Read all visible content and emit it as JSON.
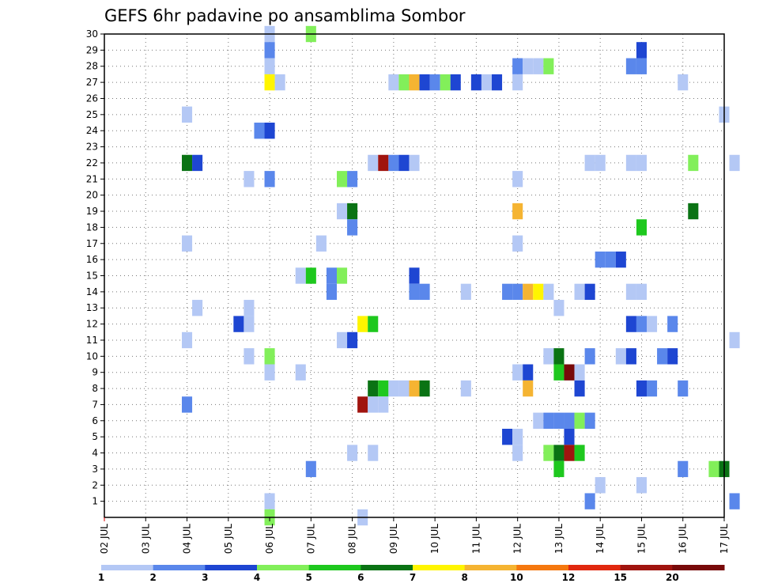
{
  "chart_data": {
    "type": "heatmap",
    "title": "GEFS 6hr padavine po ansamblima Sombor",
    "xlabel": "",
    "ylabel": "",
    "x_ticks": [
      "02 JUL",
      "03 JUL",
      "04 JUL",
      "05 JUL",
      "06 JUL",
      "07 JUL",
      "08 JUL",
      "09 JUL",
      "10 JUL",
      "11 JUL",
      "12 JUL",
      "13 JUL",
      "14 JUL",
      "15 JUL",
      "16 JUL",
      "17 JUL"
    ],
    "y_ticks": [
      1,
      2,
      3,
      4,
      5,
      6,
      7,
      8,
      9,
      10,
      11,
      12,
      13,
      14,
      15,
      16,
      17,
      18,
      19,
      20,
      21,
      22,
      23,
      24,
      25,
      26,
      27,
      28,
      29,
      30
    ],
    "xlim": [
      "02 JUL",
      "17 JUL"
    ],
    "ylim": [
      0,
      30
    ],
    "grid": true,
    "colorbar": {
      "labels": [
        "1",
        "2",
        "3",
        "4",
        "5",
        "6",
        "7",
        "8",
        "10",
        "12",
        "15",
        "20"
      ],
      "colors": [
        "#b4c8f5",
        "#5a87eb",
        "#1e46d2",
        "#82ef5a",
        "#1ec81e",
        "#0a7314",
        "#fff500",
        "#f5b432",
        "#f5780f",
        "#e1280f",
        "#a0140f",
        "#780a0a"
      ]
    },
    "cells": [
      [
        "06 JUL 00",
        30,
        1
      ],
      [
        "06 JUL 00",
        29,
        2
      ],
      [
        "06 JUL 00",
        28,
        1
      ],
      [
        "06 JUL 00",
        27,
        7
      ],
      [
        "06 JUL 06",
        27,
        1
      ],
      [
        "06 JUL 00",
        1,
        1
      ],
      [
        "06 JUL 00",
        0,
        4
      ],
      [
        "07 JUL 00",
        30,
        4
      ],
      [
        "07 JUL 00",
        3,
        2
      ],
      [
        "15 JUL 00",
        29,
        3
      ],
      [
        "12 JUL 00",
        28,
        2
      ],
      [
        "12 JUL 06",
        28,
        1
      ],
      [
        "12 JUL 12",
        28,
        1
      ],
      [
        "12 JUL 18",
        28,
        4
      ],
      [
        "14 JUL 18",
        28,
        2
      ],
      [
        "15 JUL 00",
        28,
        2
      ],
      [
        "09 JUL 00",
        27,
        1
      ],
      [
        "09 JUL 06",
        27,
        4
      ],
      [
        "09 JUL 12",
        27,
        8
      ],
      [
        "09 JUL 18",
        27,
        3
      ],
      [
        "10 JUL 00",
        27,
        2
      ],
      [
        "10 JUL 06",
        27,
        4
      ],
      [
        "10 JUL 12",
        27,
        3
      ],
      [
        "11 JUL 00",
        27,
        3
      ],
      [
        "11 JUL 06",
        27,
        1
      ],
      [
        "11 JUL 12",
        27,
        3
      ],
      [
        "12 JUL 00",
        27,
        1
      ],
      [
        "16 JUL 00",
        27,
        1
      ],
      [
        "04 JUL 00",
        25,
        1
      ],
      [
        "17 JUL 00",
        25,
        1
      ],
      [
        "05 JUL 18",
        24,
        2
      ],
      [
        "06 JUL 00",
        24,
        3
      ],
      [
        "04 JUL 00",
        22,
        6
      ],
      [
        "04 JUL 06",
        22,
        3
      ],
      [
        "08 JUL 12",
        22,
        1
      ],
      [
        "08 JUL 18",
        22,
        15
      ],
      [
        "09 JUL 00",
        22,
        2
      ],
      [
        "09 JUL 06",
        22,
        3
      ],
      [
        "09 JUL 12",
        22,
        1
      ],
      [
        "13 JUL 18",
        22,
        1
      ],
      [
        "14 JUL 00",
        22,
        1
      ],
      [
        "14 JUL 18",
        22,
        1
      ],
      [
        "15 JUL 00",
        22,
        1
      ],
      [
        "16 JUL 06",
        22,
        4
      ],
      [
        "17 JUL 06",
        22,
        1
      ],
      [
        "05 JUL 12",
        21,
        1
      ],
      [
        "06 JUL 00",
        21,
        2
      ],
      [
        "07 JUL 18",
        21,
        4
      ],
      [
        "08 JUL 00",
        21,
        2
      ],
      [
        "12 JUL 00",
        21,
        1
      ],
      [
        "07 JUL 18",
        19,
        1
      ],
      [
        "08 JUL 00",
        19,
        6
      ],
      [
        "12 JUL 00",
        19,
        8
      ],
      [
        "16 JUL 06",
        19,
        6
      ],
      [
        "08 JUL 00",
        18,
        2
      ],
      [
        "15 JUL 00",
        18,
        5
      ],
      [
        "04 JUL 00",
        17,
        1
      ],
      [
        "07 JUL 06",
        17,
        1
      ],
      [
        "12 JUL 00",
        17,
        1
      ],
      [
        "14 JUL 00",
        16,
        2
      ],
      [
        "14 JUL 06",
        16,
        2
      ],
      [
        "14 JUL 12",
        16,
        3
      ],
      [
        "06 JUL 18",
        15,
        1
      ],
      [
        "07 JUL 00",
        15,
        5
      ],
      [
        "07 JUL 12",
        15,
        2
      ],
      [
        "07 JUL 18",
        15,
        4
      ],
      [
        "09 JUL 12",
        15,
        3
      ],
      [
        "07 JUL 12",
        14,
        2
      ],
      [
        "09 JUL 12",
        14,
        2
      ],
      [
        "09 JUL 18",
        14,
        2
      ],
      [
        "10 JUL 18",
        14,
        1
      ],
      [
        "11 JUL 18",
        14,
        2
      ],
      [
        "12 JUL 00",
        14,
        2
      ],
      [
        "12 JUL 06",
        14,
        8
      ],
      [
        "12 JUL 12",
        14,
        7
      ],
      [
        "12 JUL 18",
        14,
        1
      ],
      [
        "13 JUL 12",
        14,
        1
      ],
      [
        "13 JUL 18",
        14,
        3
      ],
      [
        "14 JUL 18",
        14,
        1
      ],
      [
        "15 JUL 00",
        14,
        1
      ],
      [
        "04 JUL 06",
        13,
        1
      ],
      [
        "05 JUL 12",
        13,
        1
      ],
      [
        "13 JUL 00",
        13,
        1
      ],
      [
        "05 JUL 06",
        12,
        3
      ],
      [
        "05 JUL 12",
        12,
        1
      ],
      [
        "08 JUL 06",
        12,
        7
      ],
      [
        "08 JUL 12",
        12,
        5
      ],
      [
        "14 JUL 18",
        12,
        3
      ],
      [
        "15 JUL 00",
        12,
        2
      ],
      [
        "15 JUL 06",
        12,
        1
      ],
      [
        "15 JUL 18",
        12,
        2
      ],
      [
        "04 JUL 00",
        11,
        1
      ],
      [
        "07 JUL 18",
        11,
        1
      ],
      [
        "08 JUL 00",
        11,
        3
      ],
      [
        "17 JUL 06",
        11,
        1
      ],
      [
        "05 JUL 12",
        10,
        1
      ],
      [
        "06 JUL 00",
        10,
        4
      ],
      [
        "12 JUL 18",
        10,
        1
      ],
      [
        "13 JUL 00",
        10,
        6
      ],
      [
        "13 JUL 18",
        10,
        2
      ],
      [
        "14 JUL 12",
        10,
        1
      ],
      [
        "14 JUL 18",
        10,
        3
      ],
      [
        "15 JUL 12",
        10,
        2
      ],
      [
        "15 JUL 18",
        10,
        3
      ],
      [
        "06 JUL 00",
        9,
        1
      ],
      [
        "06 JUL 18",
        9,
        1
      ],
      [
        "12 JUL 00",
        9,
        1
      ],
      [
        "12 JUL 06",
        9,
        3
      ],
      [
        "13 JUL 00",
        9,
        5
      ],
      [
        "13 JUL 06",
        9,
        20
      ],
      [
        "13 JUL 12",
        9,
        1
      ],
      [
        "08 JUL 12",
        8,
        6
      ],
      [
        "08 JUL 18",
        8,
        5
      ],
      [
        "09 JUL 00",
        8,
        1
      ],
      [
        "09 JUL 06",
        8,
        1
      ],
      [
        "09 JUL 12",
        8,
        8
      ],
      [
        "09 JUL 18",
        8,
        6
      ],
      [
        "10 JUL 18",
        8,
        1
      ],
      [
        "12 JUL 06",
        8,
        8
      ],
      [
        "13 JUL 12",
        8,
        3
      ],
      [
        "15 JUL 00",
        8,
        3
      ],
      [
        "15 JUL 06",
        8,
        2
      ],
      [
        "16 JUL 00",
        8,
        2
      ],
      [
        "04 JUL 00",
        7,
        2
      ],
      [
        "08 JUL 06",
        7,
        15
      ],
      [
        "08 JUL 12",
        7,
        1
      ],
      [
        "08 JUL 18",
        7,
        1
      ],
      [
        "12 JUL 12",
        6,
        1
      ],
      [
        "12 JUL 18",
        6,
        2
      ],
      [
        "13 JUL 00",
        6,
        2
      ],
      [
        "13 JUL 06",
        6,
        2
      ],
      [
        "13 JUL 12",
        6,
        4
      ],
      [
        "13 JUL 18",
        6,
        2
      ],
      [
        "11 JUL 18",
        5,
        3
      ],
      [
        "12 JUL 00",
        5,
        1
      ],
      [
        "13 JUL 06",
        5,
        3
      ],
      [
        "08 JUL 00",
        4,
        1
      ],
      [
        "08 JUL 12",
        4,
        1
      ],
      [
        "12 JUL 00",
        4,
        1
      ],
      [
        "12 JUL 18",
        4,
        4
      ],
      [
        "13 JUL 00",
        4,
        6
      ],
      [
        "13 JUL 06",
        4,
        15
      ],
      [
        "13 JUL 12",
        4,
        5
      ],
      [
        "13 JUL 00",
        3,
        5
      ],
      [
        "16 JUL 00",
        3,
        2
      ],
      [
        "16 JUL 18",
        3,
        4
      ],
      [
        "17 JUL 00",
        3,
        6
      ],
      [
        "14 JUL 00",
        2,
        1
      ],
      [
        "15 JUL 00",
        2,
        1
      ],
      [
        "13 JUL 18",
        1,
        2
      ],
      [
        "17 JUL 06",
        1,
        2
      ],
      [
        "08 JUL 06",
        0,
        1
      ]
    ]
  }
}
